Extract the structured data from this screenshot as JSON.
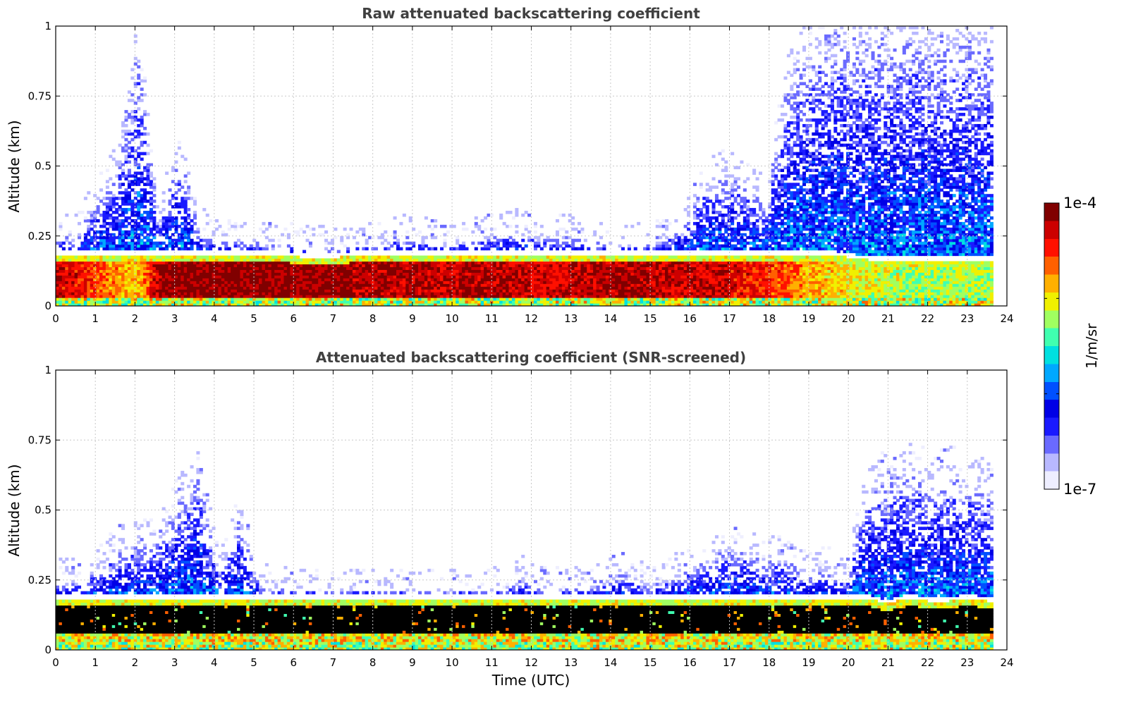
{
  "chart_data": [
    {
      "type": "heatmap",
      "title": "Raw attenuated backscattering coefficient",
      "xlabel": "",
      "ylabel": "Altitude (km)",
      "xlim": [
        0,
        24
      ],
      "ylim": [
        0,
        1
      ],
      "x_ticks": [
        "0",
        "1",
        "2",
        "3",
        "4",
        "5",
        "6",
        "7",
        "8",
        "9",
        "10",
        "11",
        "12",
        "13",
        "14",
        "15",
        "16",
        "17",
        "18",
        "19",
        "20",
        "21",
        "22",
        "23",
        "24"
      ],
      "y_ticks": [
        "0",
        "0.25",
        "0.5",
        "0.75",
        "1"
      ],
      "grid": true,
      "data_end_time": 23.65,
      "layer_top_km": [
        0.25,
        0.26,
        0.4,
        0.5,
        0.95,
        0.3,
        0.55,
        0.28,
        0.24,
        0.23,
        0.22,
        0.22,
        0.22,
        0.21,
        0.21,
        0.22,
        0.22,
        0.25,
        0.24,
        0.22,
        0.23,
        0.24,
        0.26,
        0.27,
        0.25,
        0.26,
        0.24,
        0.23,
        0.21,
        0.22,
        0.24,
        0.3,
        0.45,
        0.48,
        0.45,
        0.38,
        0.8,
        0.95,
        1.0,
        1.0,
        1.0,
        1.0,
        1.0,
        1.0,
        1.0,
        1.0,
        1.0,
        1.0
      ],
      "boundary_layer_top_km": [
        0.17,
        0.17,
        0.17,
        0.17,
        0.17,
        0.17,
        0.17,
        0.17,
        0.17,
        0.17,
        0.17,
        0.17,
        0.16,
        0.16,
        0.16,
        0.17,
        0.17,
        0.17,
        0.17,
        0.17,
        0.17,
        0.17,
        0.17,
        0.17,
        0.17,
        0.17,
        0.17,
        0.17,
        0.17,
        0.17,
        0.17,
        0.17,
        0.17,
        0.17,
        0.17,
        0.17,
        0.17,
        0.17,
        0.17,
        0.16,
        0.15,
        0.15,
        0.15,
        0.15,
        0.15,
        0.15,
        0.15,
        0.15
      ],
      "boundary_layer_log10_beta": [
        -4.3,
        -4.4,
        -4.6,
        -4.8,
        -4.9,
        -4.2,
        -4.1,
        -4.1,
        -4.1,
        -4.1,
        -4.1,
        -4.1,
        -4.1,
        -4.1,
        -4.1,
        -4.2,
        -4.2,
        -4.2,
        -4.2,
        -4.3,
        -4.2,
        -4.2,
        -4.2,
        -4.3,
        -4.3,
        -4.3,
        -4.2,
        -4.2,
        -4.2,
        -4.2,
        -4.3,
        -4.3,
        -4.3,
        -4.3,
        -4.4,
        -4.5,
        -4.6,
        -4.8,
        -4.9,
        -5.0,
        -5.1,
        -5.1,
        -5.2,
        -5.2,
        -5.2,
        -5.2,
        -5.2,
        -5.2
      ]
    },
    {
      "type": "heatmap",
      "title": "Attenuated backscattering coefficient (SNR-screened)",
      "xlabel": "Time (UTC)",
      "ylabel": "Altitude (km)",
      "xlim": [
        0,
        24
      ],
      "ylim": [
        0,
        1
      ],
      "x_ticks": [
        "0",
        "1",
        "2",
        "3",
        "4",
        "5",
        "6",
        "7",
        "8",
        "9",
        "10",
        "11",
        "12",
        "13",
        "14",
        "15",
        "16",
        "17",
        "18",
        "19",
        "20",
        "21",
        "22",
        "23",
        "24"
      ],
      "y_ticks": [
        "0",
        "0.25",
        "0.5",
        "0.75",
        "1"
      ],
      "grid": true,
      "data_end_time": 23.65,
      "screened_layer_top_km": [
        0.25,
        0.25,
        0.3,
        0.37,
        0.38,
        0.4,
        0.55,
        0.65,
        0.27,
        0.48,
        0.23,
        0.22,
        0.21,
        0.21,
        0.21,
        0.21,
        0.21,
        0.21,
        0.21,
        0.21,
        0.21,
        0.21,
        0.22,
        0.26,
        0.22,
        0.22,
        0.23,
        0.24,
        0.28,
        0.23,
        0.25,
        0.28,
        0.32,
        0.37,
        0.35,
        0.33,
        0.33,
        0.28,
        0.3,
        0.25,
        0.58,
        0.65,
        0.66,
        0.65,
        0.66,
        0.62,
        0.6,
        0.52
      ],
      "saturated_layer_top_km": [
        0.17,
        0.17,
        0.17,
        0.17,
        0.17,
        0.17,
        0.17,
        0.17,
        0.17,
        0.17,
        0.17,
        0.17,
        0.17,
        0.17,
        0.17,
        0.17,
        0.17,
        0.17,
        0.17,
        0.17,
        0.17,
        0.17,
        0.17,
        0.17,
        0.17,
        0.17,
        0.17,
        0.17,
        0.17,
        0.17,
        0.17,
        0.17,
        0.17,
        0.17,
        0.17,
        0.17,
        0.17,
        0.17,
        0.17,
        0.17,
        0.17,
        0.15,
        0.17,
        0.16,
        0.16,
        0.17,
        0.16,
        0.16
      ]
    }
  ],
  "colorbar": {
    "label": "1/m/sr",
    "max_label": "1e-4",
    "min_label": "1e-7",
    "min_value": 1e-07,
    "max_value": 0.0001,
    "scale": "log",
    "colormap": [
      "#eeeeff",
      "#b8b8ff",
      "#6a6aff",
      "#1a1aff",
      "#0000e6",
      "#0050ff",
      "#00a8ff",
      "#00e0e0",
      "#40ffb0",
      "#a0ff60",
      "#f0f000",
      "#ffb000",
      "#ff6000",
      "#ff1000",
      "#cc0000",
      "#800000"
    ],
    "saturated_color": "#000000"
  }
}
